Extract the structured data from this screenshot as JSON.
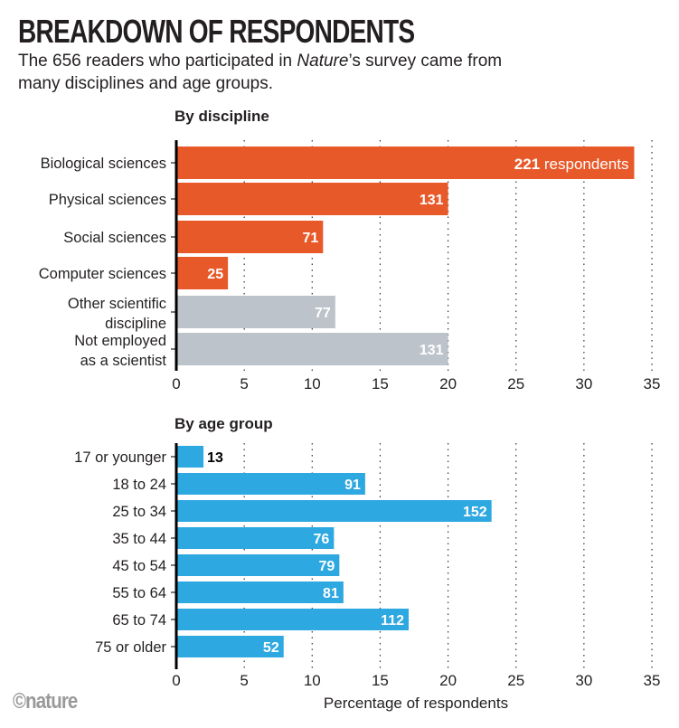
{
  "title": "BREAKDOWN OF RESPONDENTS",
  "subtitle_before": "The 656 readers who participated in ",
  "subtitle_italic": "Nature",
  "subtitle_after": "’s survey came from many disciplines and age groups.",
  "logo": "©nature",
  "colors": {
    "science": "#E8592A",
    "other": "#BCC3CA",
    "age": "#2DA8E0"
  },
  "chart_data": [
    {
      "type": "bar",
      "orientation": "horizontal",
      "title": "By discipline",
      "xlabel": "",
      "xlim": [
        0,
        35
      ],
      "xticks": [
        "0",
        "5",
        "10",
        "15",
        "20",
        "25",
        "30",
        "35"
      ],
      "grid": "dotted vertical",
      "categories": [
        "Biological sciences",
        "Physical sciences",
        "Social sciences",
        "Computer sciences",
        "Other scientific discipline",
        "Not employed as a scientist"
      ],
      "values": [
        33.7,
        20.0,
        10.8,
        3.8,
        11.7,
        20.0
      ],
      "data_labels": [
        "221",
        "131",
        "71",
        "25",
        "77",
        "131"
      ],
      "first_label_suffix": " respondents",
      "bar_colors": [
        "science",
        "science",
        "science",
        "science",
        "other",
        "other"
      ]
    },
    {
      "type": "bar",
      "orientation": "horizontal",
      "title": "By age group",
      "xlabel": "Percentage of respondents",
      "xlim": [
        0,
        35
      ],
      "xticks": [
        "0",
        "5",
        "10",
        "15",
        "20",
        "25",
        "30",
        "35"
      ],
      "grid": "dotted vertical",
      "categories": [
        "17 or younger",
        "18 to 24",
        "25 to 34",
        "35 to 44",
        "45 to 54",
        "55 to 64",
        "65 to 74",
        "75 or older"
      ],
      "values": [
        2.0,
        13.9,
        23.2,
        11.6,
        12.0,
        12.3,
        17.1,
        7.9
      ],
      "data_labels": [
        "13",
        "91",
        "152",
        "76",
        "79",
        "81",
        "112",
        "52"
      ],
      "bar_colors": [
        "age",
        "age",
        "age",
        "age",
        "age",
        "age",
        "age",
        "age"
      ]
    }
  ]
}
